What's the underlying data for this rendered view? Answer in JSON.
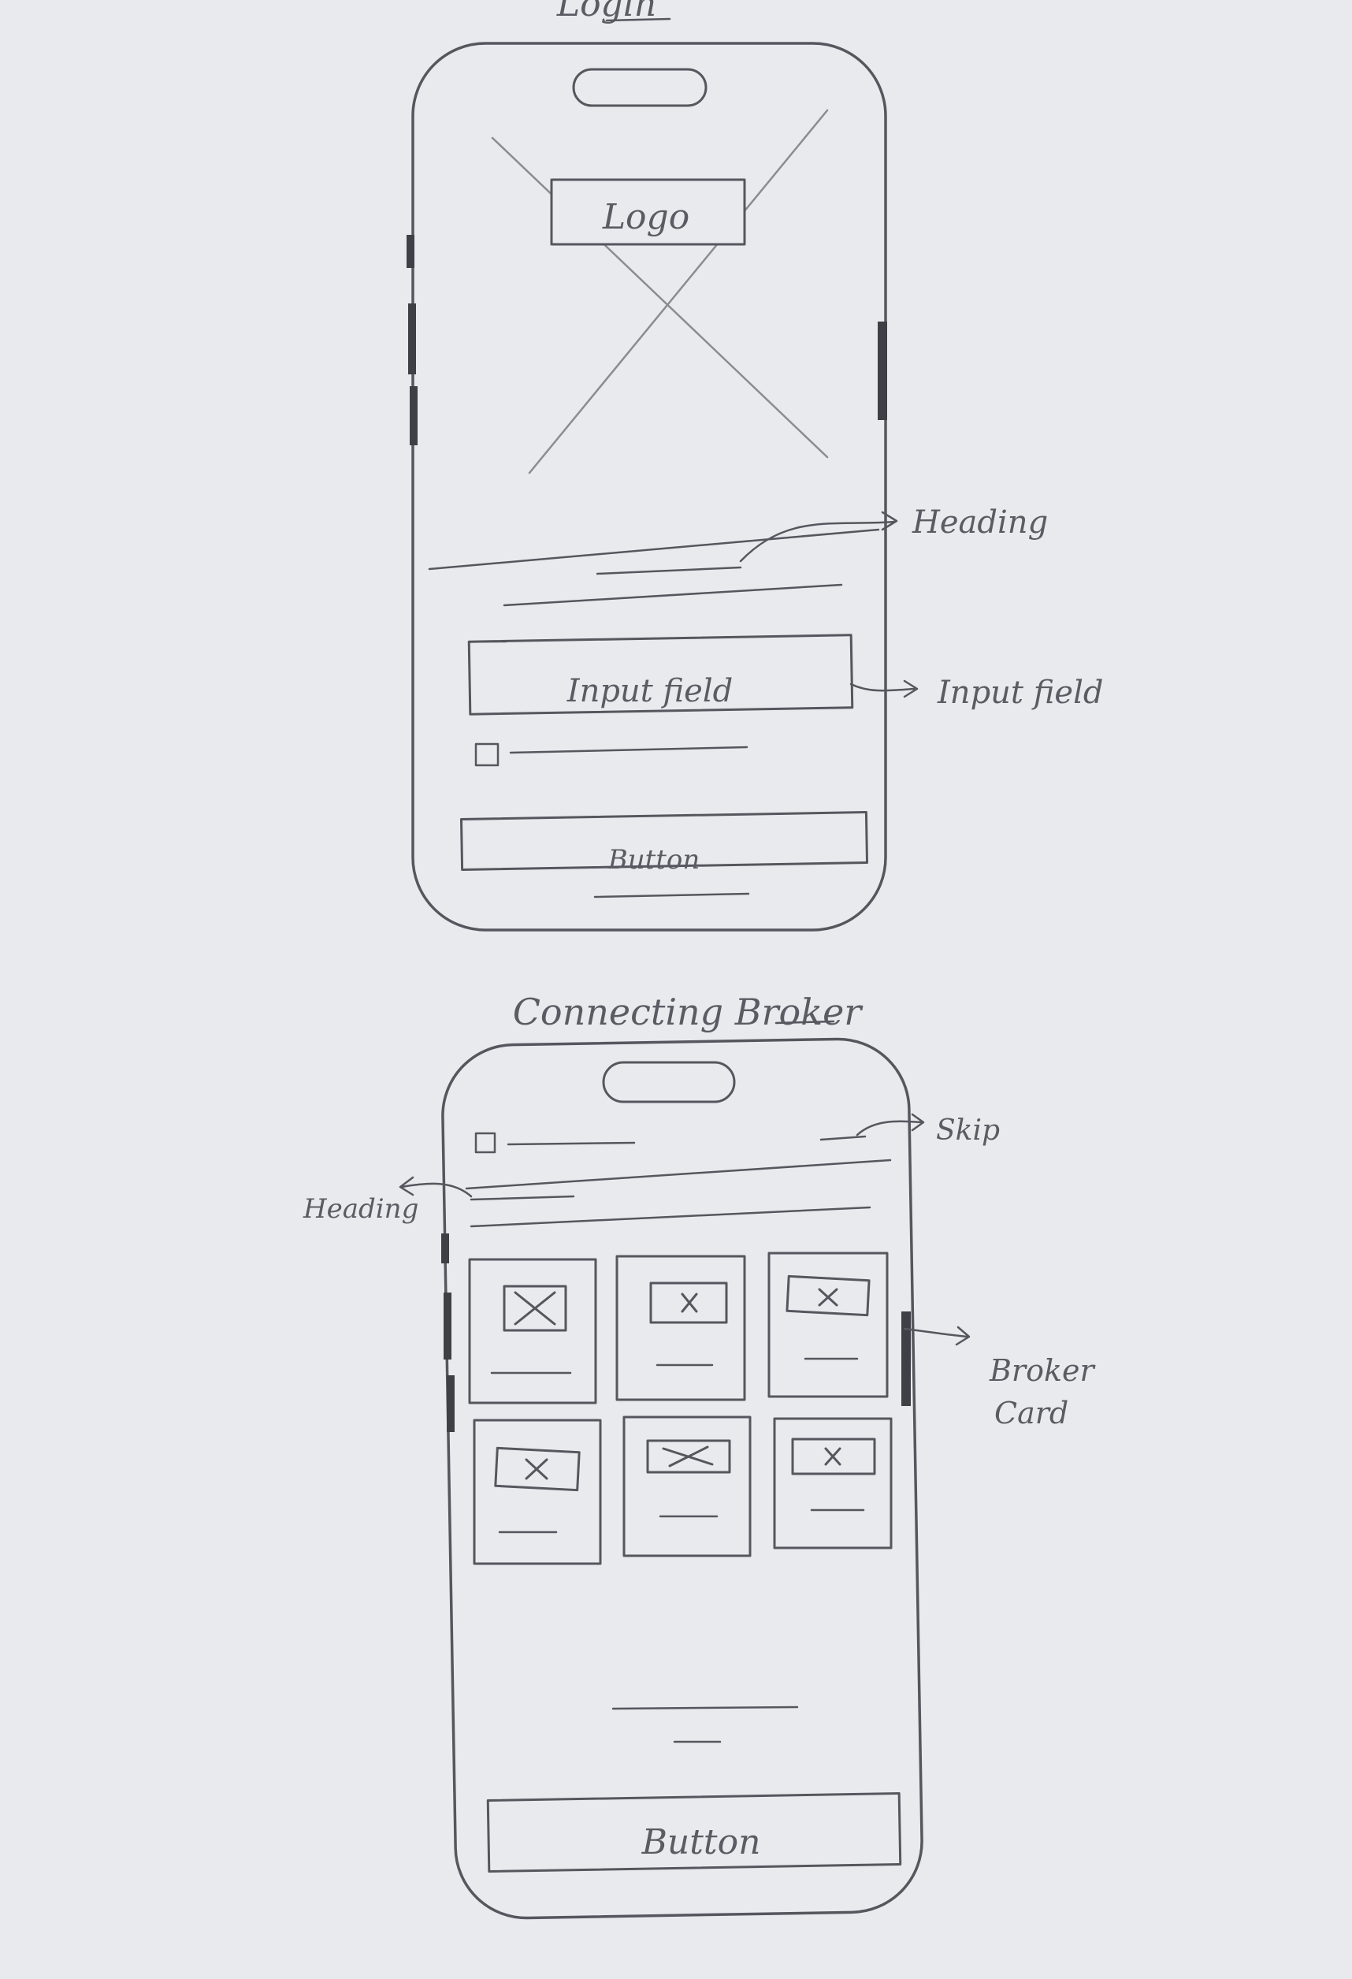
{
  "colors": {
    "paper": "#e9eaee",
    "pencil": "#55575e",
    "pencil_light": "#8a8c93"
  },
  "screens": [
    {
      "title": "Login",
      "logo_label": "Logo",
      "input_label": "Input field",
      "button_label": "Button"
    },
    {
      "title": "Connecting Broker",
      "button_label": "Button",
      "broker_card_count": 6
    }
  ],
  "annotations": {
    "login_heading": "Heading",
    "login_input": "Input field",
    "broker_skip": "Skip",
    "broker_heading": "Heading",
    "broker_card": [
      "Broker",
      "Card"
    ]
  }
}
